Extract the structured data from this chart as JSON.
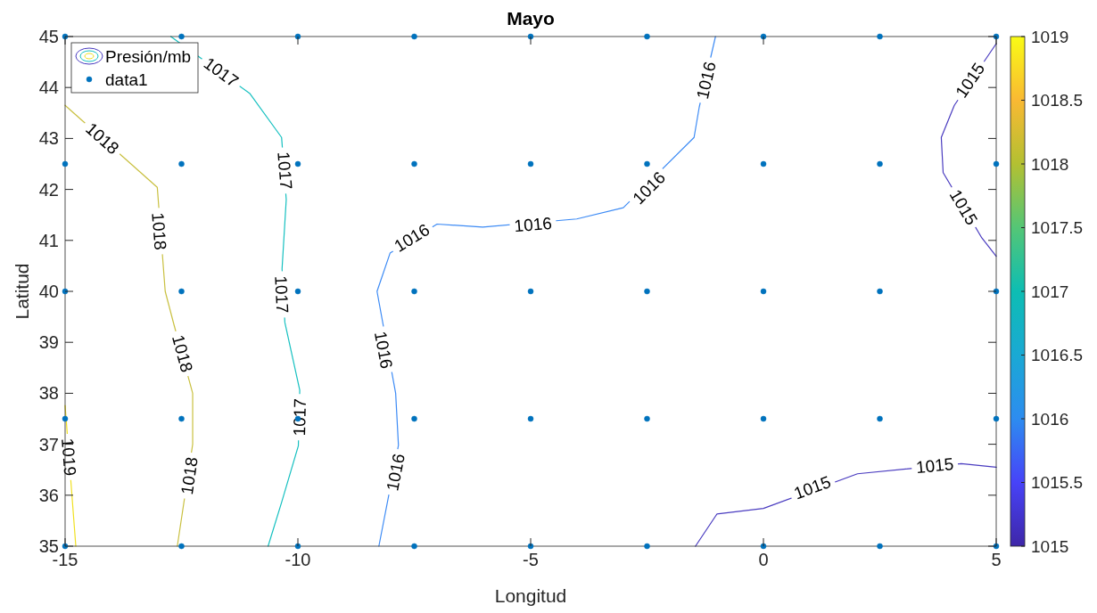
{
  "chart_data": {
    "type": "line",
    "title": "Mayo",
    "xlabel": "Longitud",
    "ylabel": "Latitud",
    "xlim": [
      -15,
      5
    ],
    "xticks": [
      -15,
      -10,
      -5,
      0,
      5
    ],
    "ylim": [
      35,
      45
    ],
    "yticks": [
      35,
      36,
      37,
      38,
      39,
      40,
      41,
      42,
      43,
      44,
      45
    ],
    "clim": [
      1015,
      1019
    ],
    "cticks": [
      1015,
      1015.5,
      1016,
      1016.5,
      1017,
      1017.5,
      1018,
      1018.5,
      1019
    ],
    "grid": false,
    "legend": "top left",
    "line_style": "solid",
    "series": [
      {
        "color": "#4a3cc0",
        "x": [
          5.0,
          4.1,
          3.82,
          3.86,
          4.69,
          5.0
        ],
        "values": [
          44.86,
          43.65,
          43.02,
          42.33,
          41.05,
          40.69
        ]
      },
      {
        "color": "#4a3cc0",
        "x": [
          -1.46,
          -1.0,
          0.0,
          2.02,
          4.25,
          5.0
        ],
        "values": [
          35,
          35.63,
          35.74,
          36.42,
          36.62,
          36.55
        ]
      },
      {
        "color": "#3d8bf5",
        "x": [
          -8.26,
          -7.84,
          -7.9,
          -8.3,
          -8.02,
          -7.01,
          -6.03,
          -4.01,
          -3.01,
          -1.49,
          -1.38,
          -1.03
        ],
        "values": [
          35,
          36.98,
          38.0,
          40.0,
          40.75,
          41.32,
          41.26,
          41.42,
          41.64,
          43.02,
          43.61,
          45
        ]
      },
      {
        "name": "Presión/mb",
        "color": "#16c0c0",
        "x": [
          -12.73,
          -11.03,
          -10.35,
          -10.25,
          -10.34,
          -10.28,
          -9.96,
          -9.99,
          -10.35,
          -10.64
        ],
        "values": [
          45,
          43.88,
          43.02,
          41.8,
          40.44,
          39.39,
          38.06,
          36.97,
          35.86,
          35
        ]
      },
      {
        "color": "#c9c040",
        "x": [
          -15,
          -13.02,
          -12.85,
          -12.66,
          -12.26,
          -12.26,
          -12.59
        ],
        "values": [
          43.65,
          42.04,
          40.0,
          39.34,
          38.0,
          37.0,
          35
        ]
      },
      {
        "color": "#f0e020",
        "x": [
          -15,
          -14.77
        ],
        "values": [
          37.76,
          35
        ]
      },
      {
        "type": "scatter",
        "name": "data1",
        "color": "#0072bd",
        "marker": "circle",
        "x": [
          -15,
          -12.5,
          -10,
          -7.5,
          -5,
          -2.5,
          0,
          2.5,
          5,
          -15,
          -12.5,
          -10,
          -7.5,
          -5,
          -2.5,
          0,
          2.5,
          5,
          -15,
          -12.5,
          -10,
          -7.5,
          -5,
          -2.5,
          0,
          2.5,
          5,
          -15,
          -12.5,
          -10,
          -7.5,
          -5,
          -2.5,
          0,
          2.5,
          5,
          -15,
          -12.5,
          -10,
          -7.5,
          -5,
          -2.5,
          0,
          2.5,
          5
        ],
        "values": [
          45,
          45,
          45,
          45,
          45,
          45,
          45,
          45,
          45,
          42.5,
          42.5,
          42.5,
          42.5,
          42.5,
          42.5,
          42.5,
          42.5,
          42.5,
          40,
          40,
          40,
          40,
          40,
          40,
          40,
          40,
          40,
          37.5,
          37.5,
          37.5,
          37.5,
          37.5,
          37.5,
          37.5,
          37.5,
          37.5,
          35,
          35,
          35,
          35,
          35,
          35,
          35,
          35,
          35
        ]
      }
    ],
    "annotations": [
      {
        "text": "1017",
        "x": -11.65,
        "y": 44.3
      },
      {
        "text": "1018",
        "x": -14.2,
        "y": 43.0
      },
      {
        "text": "1017",
        "x": -10.28,
        "y": 42.37
      },
      {
        "text": "1018",
        "x": -12.98,
        "y": 41.18
      },
      {
        "text": "1017",
        "x": -10.35,
        "y": 39.94
      },
      {
        "text": "1018",
        "x": -12.48,
        "y": 38.78
      },
      {
        "text": "1017",
        "x": -9.96,
        "y": 37.53
      },
      {
        "text": "1016",
        "x": -8.16,
        "y": 38.85
      },
      {
        "text": "1018",
        "x": -12.33,
        "y": 36.38
      },
      {
        "text": "1019",
        "x": -14.92,
        "y": 36.75
      },
      {
        "text": "1016",
        "x": -7.9,
        "y": 36.45
      },
      {
        "text": "1016",
        "x": -7.55,
        "y": 41.05
      },
      {
        "text": "1016",
        "x": -4.95,
        "y": 41.31
      },
      {
        "text": "1016",
        "x": -2.46,
        "y": 42.03
      },
      {
        "text": "1016",
        "x": -1.23,
        "y": 44.14
      },
      {
        "text": "1015",
        "x": 4.44,
        "y": 44.14
      },
      {
        "text": "1015",
        "x": 4.3,
        "y": 41.65
      },
      {
        "text": "1015",
        "x": 1.05,
        "y": 36.15
      },
      {
        "text": "1015",
        "x": 3.68,
        "y": 36.58
      }
    ]
  }
}
